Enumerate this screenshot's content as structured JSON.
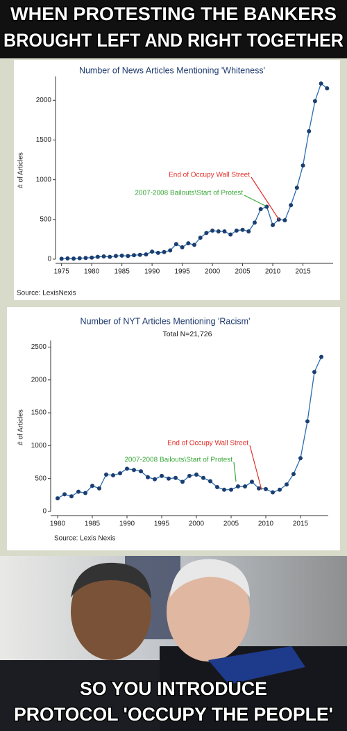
{
  "caption_top": [
    "WHEN PROTESTING THE BANKERS",
    "BROUGHT LEFT AND RIGHT TOGETHER"
  ],
  "caption_bottom": [
    "SO YOU INTRODUCE",
    "PROTOCOL 'OCCUPY THE PEOPLE'"
  ],
  "chart_data": [
    {
      "type": "line",
      "title": "Number of News Articles Mentioning 'Whiteness'",
      "y_label": "# of Articles",
      "source": "Source: LexisNexis",
      "x": [
        1975,
        1976,
        1977,
        1978,
        1979,
        1980,
        1981,
        1982,
        1983,
        1984,
        1985,
        1986,
        1987,
        1988,
        1989,
        1990,
        1991,
        1992,
        1993,
        1994,
        1995,
        1996,
        1997,
        1998,
        1999,
        2000,
        2001,
        2002,
        2003,
        2004,
        2005,
        2006,
        2007,
        2008,
        2009,
        2010,
        2011,
        2012,
        2013,
        2014,
        2015,
        2016,
        2017,
        2018,
        2019
      ],
      "series": [
        {
          "name": "Articles",
          "color": "#2a6cb0",
          "marker_color": "#1b3e70",
          "values": [
            5,
            10,
            8,
            12,
            15,
            20,
            30,
            35,
            30,
            40,
            45,
            40,
            50,
            55,
            60,
            95,
            80,
            90,
            110,
            190,
            150,
            200,
            180,
            270,
            330,
            360,
            350,
            350,
            310,
            360,
            370,
            350,
            460,
            630,
            660,
            430,
            500,
            490,
            680,
            900,
            1180,
            1610,
            1990,
            2210,
            2150
          ]
        }
      ],
      "xlim": [
        1974,
        2020
      ],
      "xticks": [
        1975,
        1980,
        1985,
        1990,
        1995,
        2000,
        2005,
        2010,
        2015
      ],
      "ylim": [
        0,
        2300
      ],
      "yticks": [
        0,
        500,
        1000,
        1500,
        2000
      ],
      "annotations": [
        {
          "text": "End of Occupy Wall Street",
          "color": "#e0302a"
        },
        {
          "text": "2007-2008 Bailouts\\Start of Protest",
          "color": "#3aa83a"
        }
      ]
    },
    {
      "type": "line",
      "title": "Number of NYT Articles Mentioning 'Racism'",
      "subtitle": "Total N=21,726",
      "y_label": "# of Articles",
      "source": "Source: Lexis Nexis",
      "x": [
        1980,
        1981,
        1982,
        1983,
        1984,
        1985,
        1986,
        1987,
        1988,
        1989,
        1990,
        1991,
        1992,
        1993,
        1994,
        1995,
        1996,
        1997,
        1998,
        1999,
        2000,
        2001,
        2002,
        2003,
        2004,
        2005,
        2006,
        2007,
        2008,
        2009,
        2010,
        2011,
        2012,
        2013,
        2014,
        2015,
        2016,
        2017,
        2018
      ],
      "series": [
        {
          "name": "Articles",
          "color": "#2a6cb0",
          "marker_color": "#1b3e70",
          "values": [
            200,
            260,
            230,
            300,
            280,
            390,
            350,
            560,
            550,
            580,
            650,
            630,
            610,
            520,
            490,
            540,
            500,
            510,
            450,
            540,
            560,
            510,
            460,
            370,
            330,
            330,
            380,
            380,
            450,
            350,
            340,
            290,
            330,
            410,
            570,
            810,
            1370,
            2120,
            2350
          ]
        }
      ],
      "xlim": [
        1979,
        2019
      ],
      "xticks": [
        1980,
        1985,
        1990,
        1995,
        2000,
        2005,
        2010,
        2015
      ],
      "ylim": [
        0,
        2600
      ],
      "yticks": [
        0,
        500,
        1000,
        1500,
        2000,
        2500
      ],
      "annotations": [
        {
          "text": "End of Occupy Wall Street",
          "color": "#e0302a"
        },
        {
          "text": "2007-2008 Bailouts\\Start of Protest",
          "color": "#3aa83a"
        }
      ]
    }
  ]
}
